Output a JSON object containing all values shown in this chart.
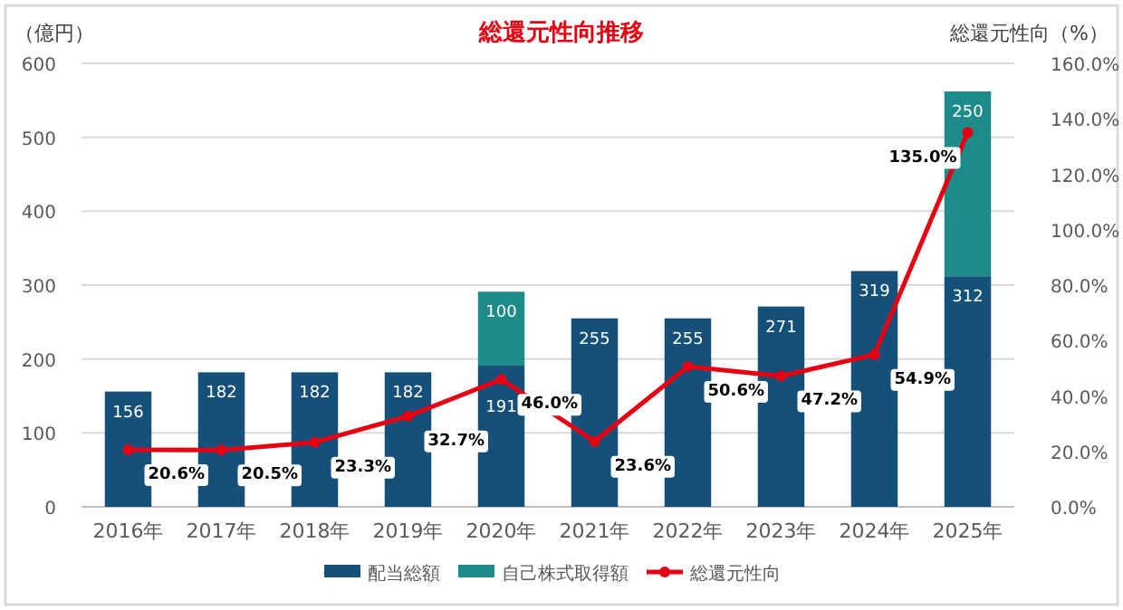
{
  "chart_data": {
    "type": "bar",
    "title": "総還元性向推移",
    "ylabel": "（億円）",
    "y2label": "総還元性向（%）",
    "categories": [
      "2016年",
      "2017年",
      "2018年",
      "2019年",
      "2020年",
      "2021年",
      "2022年",
      "2023年",
      "2024年",
      "2025年"
    ],
    "series": [
      {
        "name": "配当総額",
        "color": "#15507a",
        "values": [
          156,
          182,
          182,
          182,
          191,
          255,
          255,
          271,
          319,
          312
        ],
        "value_labels": [
          "156",
          "182",
          "182",
          "182",
          "191",
          "255",
          "255",
          "271",
          "319",
          "312"
        ]
      },
      {
        "name": "自己株式取得額",
        "color": "#1e8a8a",
        "values": [
          null,
          null,
          null,
          null,
          100,
          null,
          null,
          null,
          null,
          250
        ],
        "value_labels": [
          null,
          null,
          null,
          null,
          "100",
          null,
          null,
          null,
          null,
          "250"
        ]
      },
      {
        "name": "総還元性向",
        "type": "line",
        "axis": "y2",
        "color": "#e60012",
        "values": [
          20.6,
          20.5,
          23.3,
          32.7,
          46.0,
          23.6,
          50.6,
          47.2,
          54.9,
          135.0
        ],
        "value_labels": [
          "20.6%",
          "20.5%",
          "23.3%",
          "32.7%",
          "46.0%",
          "23.6%",
          "50.6%",
          "47.2%",
          "54.9%",
          "135.0%"
        ]
      }
    ],
    "stacked": true,
    "ylim": [
      0,
      600
    ],
    "yticks": [
      0,
      100,
      200,
      300,
      400,
      500,
      600
    ],
    "y2lim": [
      0,
      160
    ],
    "y2ticks": [
      {
        "value": 0,
        "label": "0.0%"
      },
      {
        "value": 20,
        "label": "20.0%"
      },
      {
        "value": 40,
        "label": "40.0%"
      },
      {
        "value": 60,
        "label": "60.0%"
      },
      {
        "value": 80,
        "label": "80.0%"
      },
      {
        "value": 100,
        "label": "100.0%"
      },
      {
        "value": 120,
        "label": "120.0%"
      },
      {
        "value": 140,
        "label": "140.0%"
      },
      {
        "value": 160,
        "label": "160.0%"
      }
    ],
    "grid": "y",
    "legend": "bottom",
    "marker": "circle"
  }
}
